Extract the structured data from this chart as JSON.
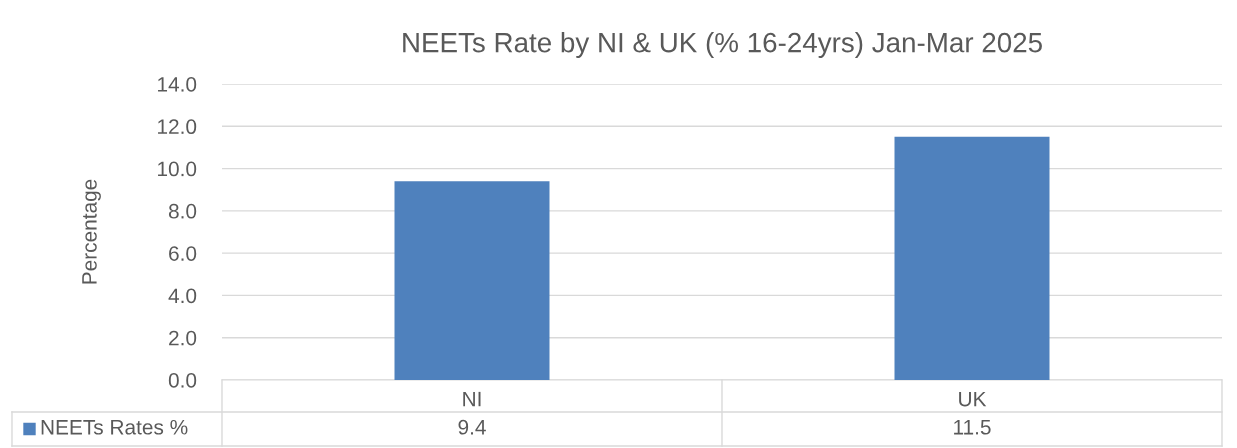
{
  "chart_data": {
    "type": "bar",
    "title": "NEETs Rate by NI & UK (% 16-24yrs) Jan-Mar 2025",
    "ylabel": "Percentage",
    "categories": [
      "NI",
      "UK"
    ],
    "series": [
      {
        "name": "NEETs Rates %",
        "color": "#4f81bd",
        "values": [
          9.4,
          11.5
        ]
      }
    ],
    "ylim": [
      0,
      14
    ],
    "yticks": [
      {
        "value": 0,
        "label": "0.0"
      },
      {
        "value": 2,
        "label": "2.0"
      },
      {
        "value": 4,
        "label": "4.0"
      },
      {
        "value": 6,
        "label": "6.0"
      },
      {
        "value": 8,
        "label": "8.0"
      },
      {
        "value": 10,
        "label": "10.0"
      },
      {
        "value": 12,
        "label": "12.0"
      },
      {
        "value": 14,
        "label": "14.0"
      }
    ],
    "grid": "y",
    "legend": "bottom",
    "data_labels": true
  }
}
